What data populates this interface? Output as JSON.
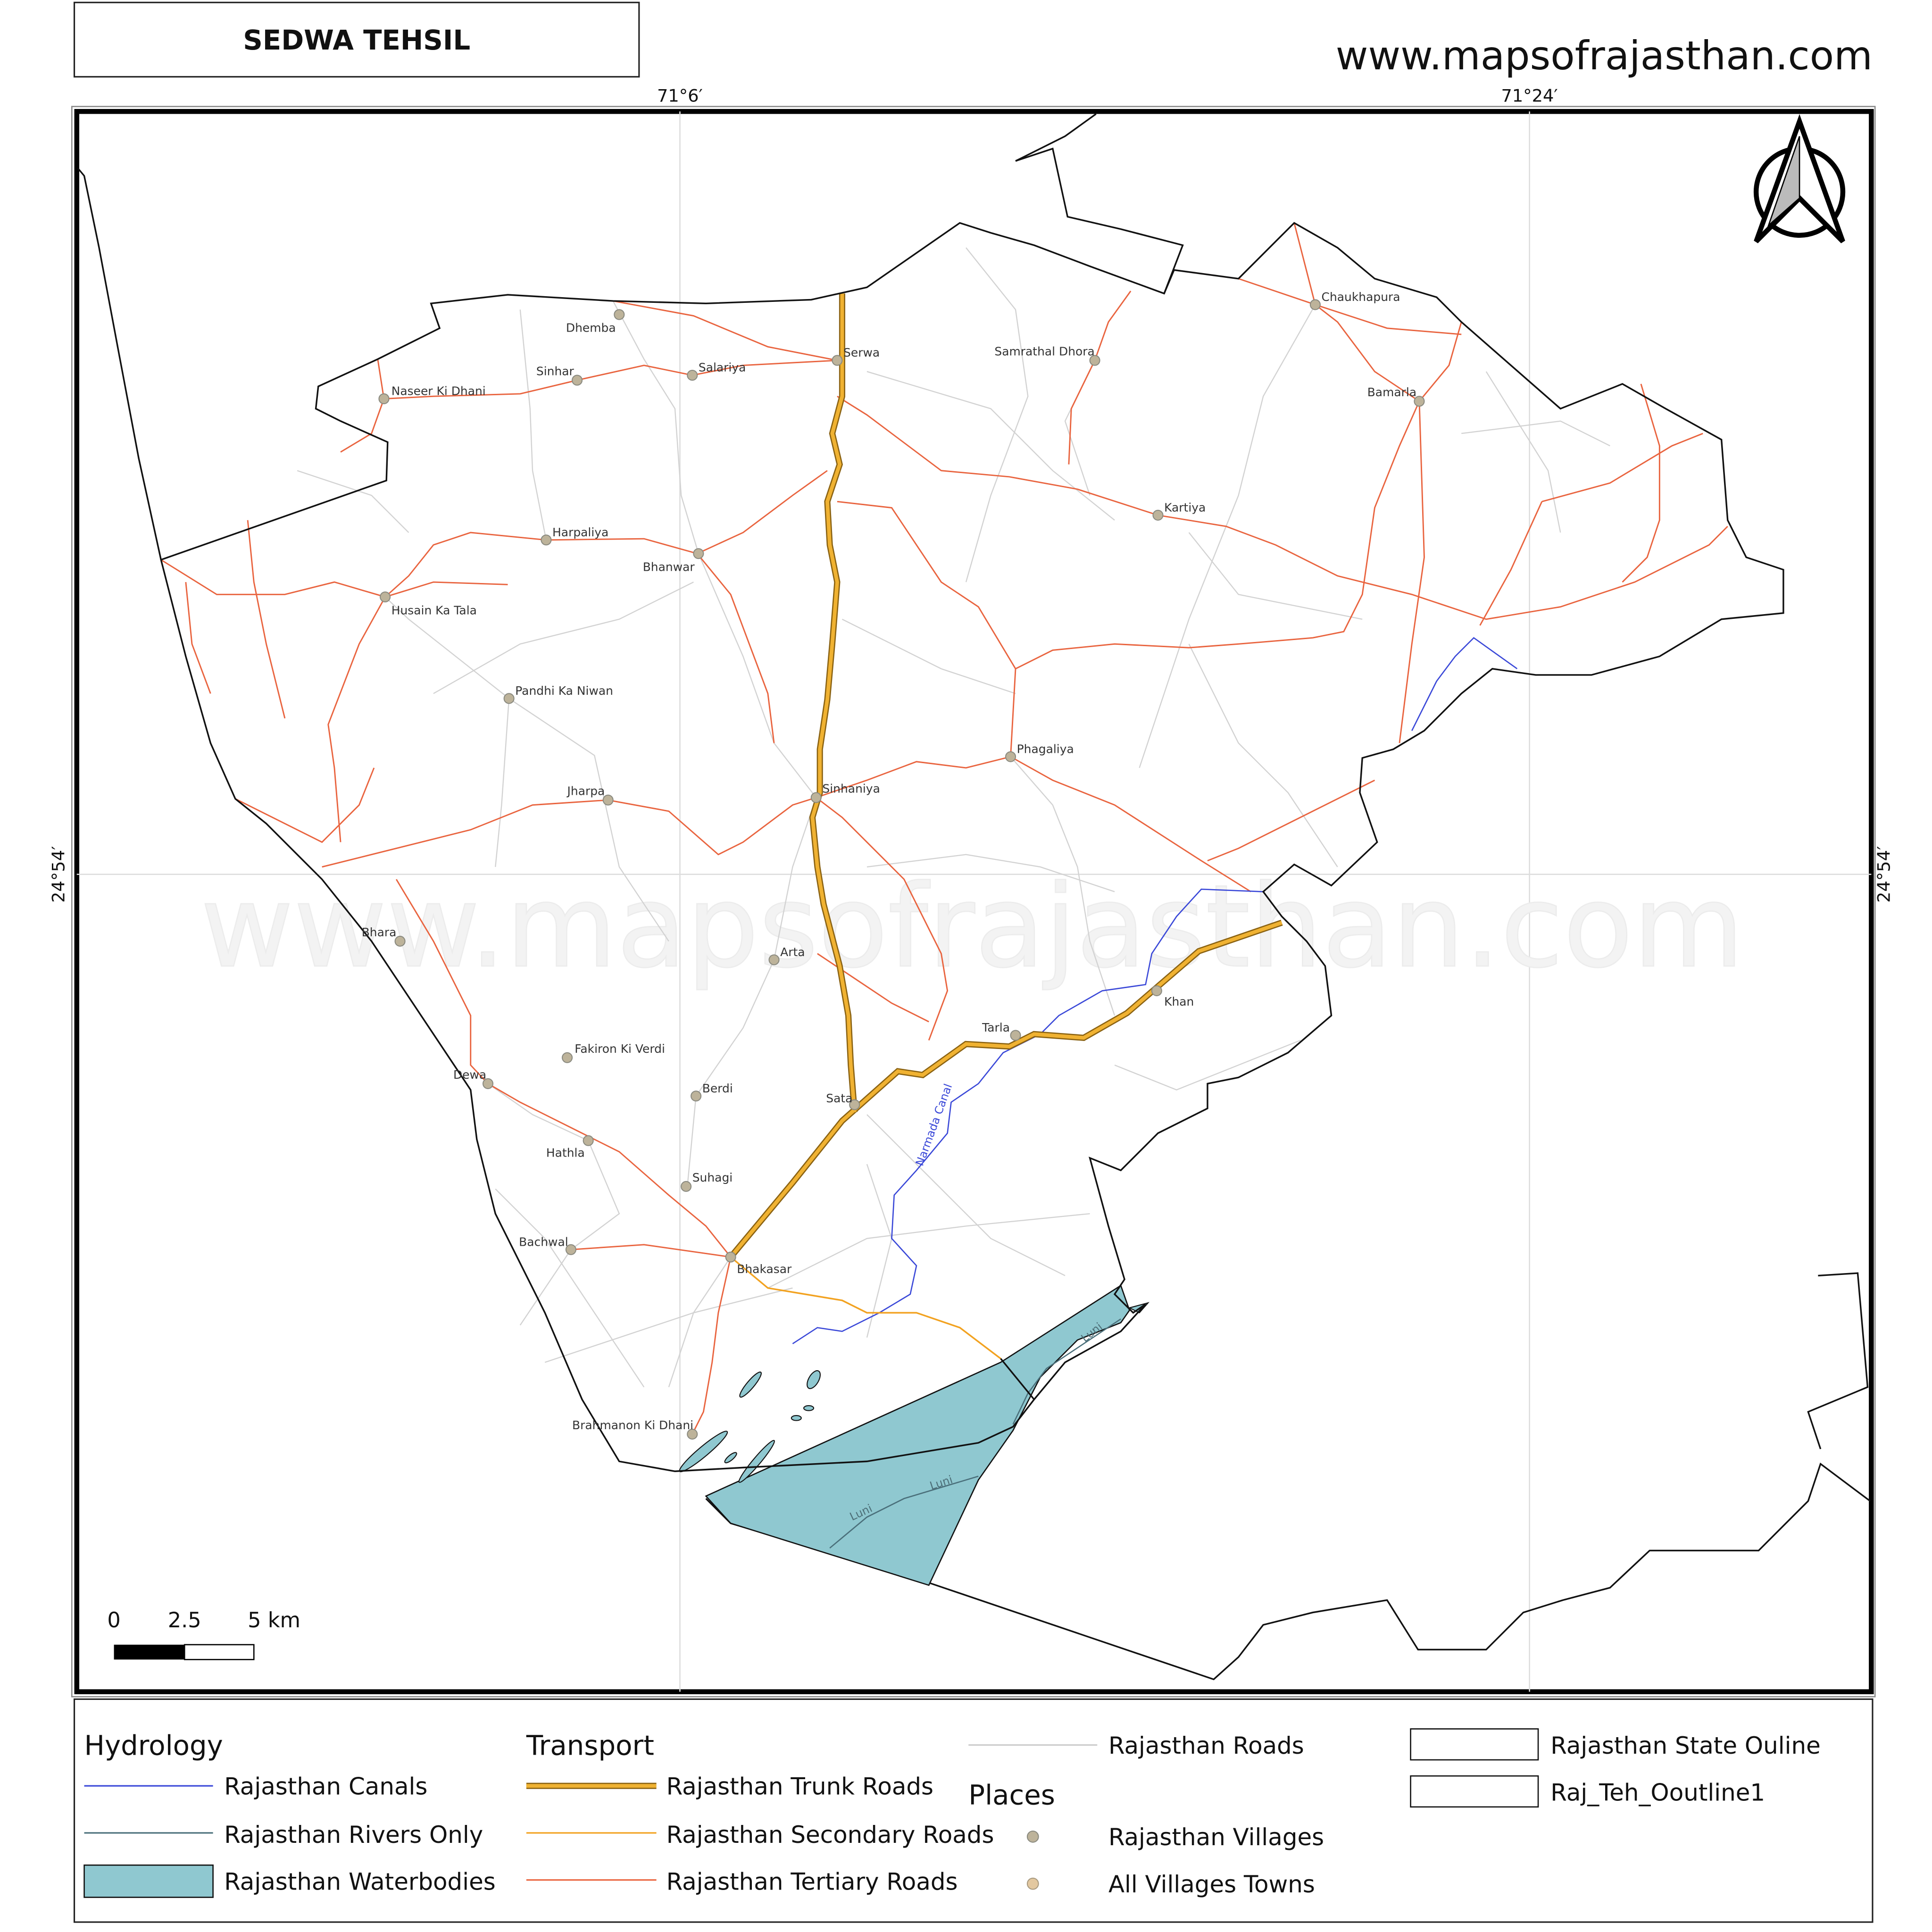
{
  "header": {
    "title": "SEDWA TEHSIL",
    "website": "www.mapsofrajasthan.com"
  },
  "graticule": {
    "longitudes": [
      "71°6′",
      "71°24′"
    ],
    "latitudes": [
      "24°54′"
    ]
  },
  "watermark": "www.mapsofrajasthan.com",
  "places": [
    "Dhemba",
    "Sinhar",
    "Salariya",
    "Serwa",
    "Naseer Ki Dhani",
    "Samrathal Dhora",
    "Chaukhapura",
    "Bamarla",
    "Kartiya",
    "Harpaliya",
    "Bhanwar",
    "Husain Ka Tala",
    "Pandhi Ka Niwan",
    "Phagaliya",
    "Sinhaniya",
    "Jharpa",
    "Bhara",
    "Arta",
    "Khan",
    "Tarla",
    "Fakiron Ki Verdi",
    "Dewa",
    "Berdi",
    "Sata",
    "Hathla",
    "Suhagi",
    "Bachwal",
    "Bhakasar",
    "Brahmanon Ki Dhani"
  ],
  "water_labels": [
    "Luni",
    "Luni",
    "Luni"
  ],
  "canal_label": "Narmada Canal",
  "scale_bar": {
    "labels": [
      "0",
      "2.5",
      "5 km"
    ]
  },
  "legend": {
    "hydrology": {
      "title": "Hydrology",
      "items": [
        "Rajasthan Canals",
        "Rajasthan Rivers Only",
        "Rajasthan Waterbodies"
      ]
    },
    "transport": {
      "title": "Transport",
      "items": [
        "Rajasthan Trunk Roads",
        "Rajasthan Secondary Roads",
        "Rajasthan Tertiary Roads"
      ]
    },
    "roads": "Rajasthan Roads",
    "places": {
      "title": "Places",
      "items": [
        "Rajasthan Villages",
        "All Villages Towns"
      ]
    },
    "outlines": [
      "Rajasthan State Ouline",
      "Raj_Teh_Ooutline1"
    ]
  }
}
